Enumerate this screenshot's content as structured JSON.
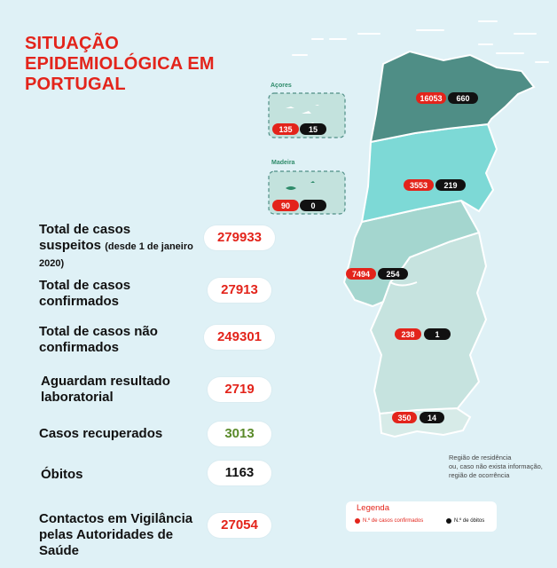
{
  "title": "SITUAÇÃO EPIDEMIOLÓGICA EM PORTUGAL",
  "stats": [
    {
      "label": "Total de casos",
      "label2": "suspeitos",
      "note": "(desde 1 de janeiro",
      "note2": "2020)",
      "value": "279933"
    },
    {
      "label": "Total de casos",
      "label2": "confirmados",
      "value": "27913"
    },
    {
      "label": "Total de casos não",
      "label2": "confirmados",
      "value": "249301"
    },
    {
      "label": "Aguardam resultado",
      "label2": "laboratorial",
      "value": "2719"
    },
    {
      "label": "Casos recuperados",
      "value": "3013"
    },
    {
      "label": "Óbitos",
      "value": "1163"
    },
    {
      "label": "Contactos em Vigilância",
      "label2": "pelas Autoridades de",
      "label3": "Saúde",
      "value": "27054"
    }
  ],
  "regions": {
    "acores": {
      "name": "Açores",
      "cases": "135",
      "deaths": "15"
    },
    "madeira": {
      "name": "Madeira",
      "cases": "90",
      "deaths": "0"
    },
    "norte": {
      "cases": "16053",
      "deaths": "660"
    },
    "centro": {
      "cases": "3553",
      "deaths": "219"
    },
    "lisboa": {
      "cases": "7494",
      "deaths": "254"
    },
    "alentejo": {
      "cases": "238",
      "deaths": "1"
    },
    "algarve": {
      "cases": "350",
      "deaths": "14"
    }
  },
  "note": {
    "line1": "Região de residência",
    "line2": "ou, caso não exista informação,",
    "line3": "região de ocorrência"
  },
  "legend": {
    "title": "Legenda",
    "cases": "N.º de casos confirmados",
    "deaths": "N.º de óbitos"
  },
  "colors": {
    "accent": "#e3241b",
    "norte": "#4f8e86",
    "centro": "#7dd9d6",
    "lisboa": "#a4d6cf",
    "alentejo": "#c6e3df",
    "algarve": "#d7ebe8",
    "recovered": "#5a8a2a"
  }
}
